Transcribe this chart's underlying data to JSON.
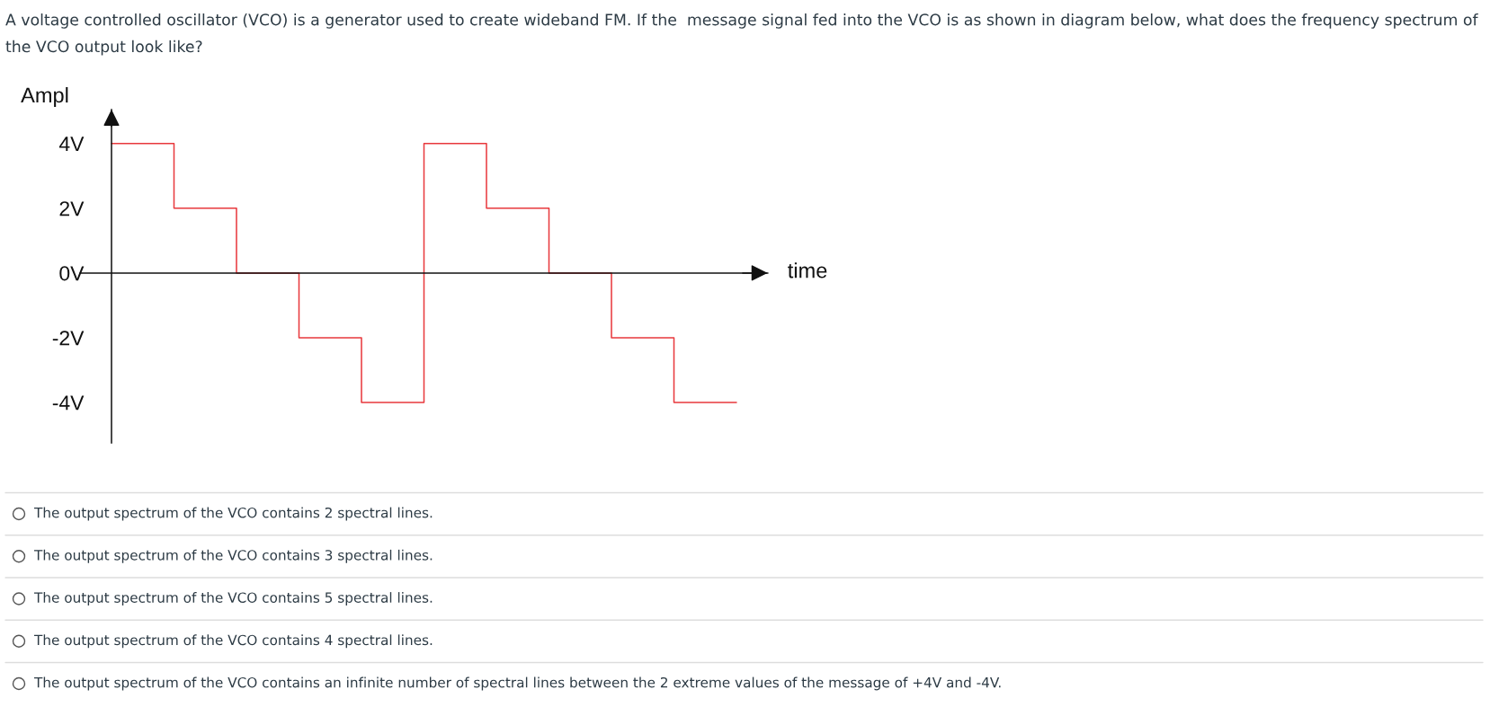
{
  "chart_data": {
    "type": "step",
    "title": "A voltage controlled oscillator (VCO) is a generator used to create wideband FM. If the  message signal fed into the VCO is as shown in diagram below, what does the frequency spectrum of the VCO output look like?",
    "xlabel": "time",
    "ylabel": "Ampl",
    "categories": [
      null,
      null,
      null,
      null,
      null,
      null,
      null,
      null,
      null,
      null,
      null
    ],
    "values": [
      4,
      2,
      0,
      -2,
      -4,
      4,
      2,
      0,
      -2,
      -4,
      -4
    ],
    "color": "#e8393d",
    "ylim": [
      -5.25,
      5.05
    ],
    "yticks": [
      {
        "value": 4,
        "label": "4V"
      },
      {
        "value": 2,
        "label": "2V"
      },
      {
        "value": 0,
        "label": "0V"
      },
      {
        "value": -2,
        "label": "-2V"
      },
      {
        "value": -4,
        "label": "-4V"
      }
    ],
    "tick_labels": "y",
    "annotations": [
      "The output spectrum of the VCO contains 2 spectral lines.",
      "The output spectrum of the VCO contains 3 spectral lines.",
      "The output spectrum of the VCO contains 5 spectral lines.",
      "The output spectrum of the VCO contains 4 spectral lines.",
      "The output spectrum of the VCO contains an infinite number of spectral lines between the 2 extreme values of the message of +4V and -4V."
    ]
  }
}
